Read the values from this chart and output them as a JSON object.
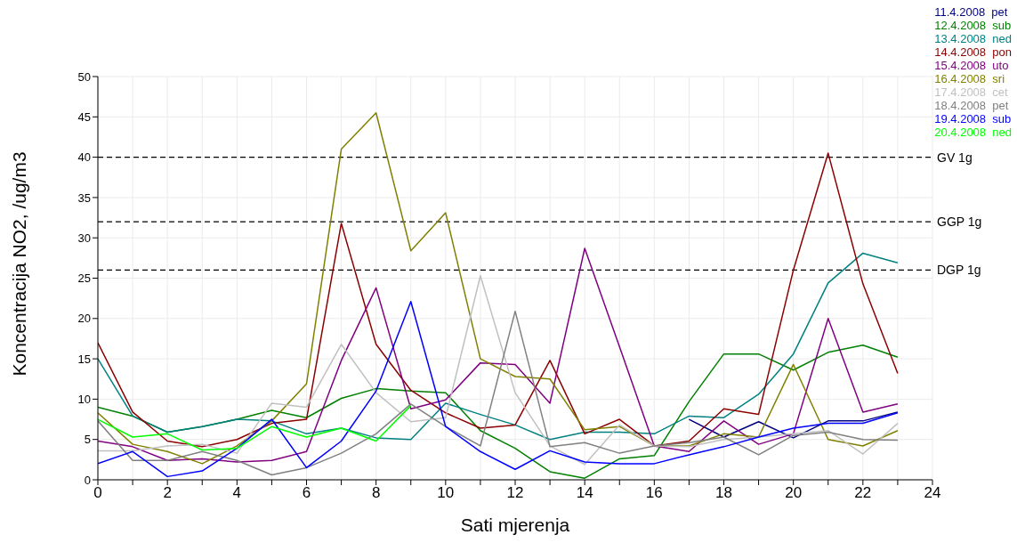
{
  "chart_data": {
    "type": "line",
    "xlabel": "Sati mjerenja",
    "ylabel": "Koncentracija NO2, /ug/m3",
    "x": [
      0,
      1,
      2,
      3,
      4,
      5,
      6,
      7,
      8,
      9,
      10,
      11,
      12,
      13,
      14,
      15,
      16,
      17,
      18,
      19,
      20,
      21,
      22,
      23
    ],
    "xlim": [
      0,
      24
    ],
    "xticks": [
      0,
      {
        "value": 1,
        "label": null
      },
      2,
      {
        "value": 3,
        "label": null
      },
      4,
      {
        "value": 5,
        "label": null
      },
      6,
      {
        "value": 7,
        "label": null
      },
      8,
      {
        "value": 9,
        "label": null
      },
      10,
      {
        "value": 11,
        "label": null
      },
      12,
      {
        "value": 13,
        "label": null
      },
      14,
      {
        "value": 15,
        "label": null
      },
      16,
      {
        "value": 17,
        "label": null
      },
      18,
      {
        "value": 19,
        "label": null
      },
      20,
      {
        "value": 21,
        "label": null
      },
      22,
      {
        "value": 23,
        "label": null
      },
      24
    ],
    "ylim": [
      0,
      50
    ],
    "yticks": [
      0,
      5,
      10,
      15,
      20,
      25,
      30,
      35,
      40,
      45,
      50
    ],
    "grid": true,
    "legend": "top right",
    "marker": "none",
    "line_style": "solid",
    "series": [
      {
        "name": "11.4.2008  pet",
        "color": "#000080",
        "values": [
          null,
          null,
          null,
          null,
          null,
          null,
          null,
          null,
          null,
          null,
          null,
          null,
          null,
          null,
          null,
          null,
          null,
          7.5,
          5.3,
          7.2,
          5.2,
          7.3,
          7.3,
          8.4
        ]
      },
      {
        "name": "12.4.2008  sub",
        "color": "#008000",
        "values": [
          9.0,
          7.9,
          5.9,
          6.6,
          7.5,
          8.6,
          7.7,
          10.1,
          11.3,
          11.0,
          10.8,
          6.1,
          3.9,
          1.0,
          0.2,
          2.6,
          3.0,
          9.7,
          15.6,
          15.6,
          13.6,
          15.8,
          16.7,
          15.2
        ]
      },
      {
        "name": "13.4.2008  ned",
        "color": "#008080",
        "values": [
          15.0,
          7.9,
          5.9,
          6.6,
          7.5,
          7.3,
          5.7,
          6.4,
          5.2,
          5.0,
          9.5,
          8.1,
          6.8,
          5.0,
          5.9,
          5.9,
          5.7,
          7.9,
          7.7,
          10.6,
          15.6,
          24.4,
          28.1,
          26.9
        ]
      },
      {
        "name": "14.4.2008  pon",
        "color": "#8b0000",
        "values": [
          17.0,
          8.4,
          4.8,
          4.1,
          5.0,
          7.0,
          7.5,
          31.8,
          16.8,
          11.1,
          8.3,
          6.4,
          6.8,
          14.8,
          5.7,
          7.5,
          4.2,
          4.8,
          8.8,
          8.1,
          26.0,
          40.5,
          24.3,
          13.2
        ]
      },
      {
        "name": "15.4.2008  uto",
        "color": "#800080",
        "values": [
          4.8,
          4.1,
          2.4,
          2.6,
          2.2,
          2.4,
          3.5,
          14.8,
          23.8,
          8.8,
          9.9,
          14.5,
          14.3,
          9.5,
          28.7,
          16.5,
          4.2,
          3.5,
          7.3,
          4.4,
          5.7,
          20.0,
          8.4,
          9.4
        ]
      },
      {
        "name": "16.4.2008  sri",
        "color": "#808000",
        "values": [
          8.3,
          4.4,
          3.5,
          2.0,
          4.2,
          7.3,
          11.9,
          41.0,
          45.5,
          28.4,
          33.1,
          15.0,
          12.8,
          12.5,
          6.2,
          6.6,
          4.2,
          4.2,
          5.7,
          5.3,
          14.3,
          5.0,
          4.2,
          6.1
        ]
      },
      {
        "name": "17.4.2008  cet",
        "color": "#c0c0c0",
        "values": [
          3.6,
          3.6,
          4.2,
          4.4,
          3.3,
          9.5,
          9.0,
          16.8,
          10.8,
          7.2,
          7.7,
          25.3,
          10.8,
          4.2,
          1.9,
          6.8,
          4.2,
          4.1,
          5.0,
          5.3,
          5.7,
          6.1,
          3.2,
          7.0
        ]
      },
      {
        "name": "18.4.2008  pet",
        "color": "#808080",
        "values": [
          7.3,
          2.4,
          2.4,
          3.5,
          2.4,
          0.6,
          1.5,
          3.3,
          5.7,
          9.4,
          6.6,
          4.2,
          20.9,
          4.1,
          4.6,
          3.3,
          4.2,
          4.6,
          5.3,
          3.1,
          5.5,
          5.9,
          5.0,
          4.9
        ]
      },
      {
        "name": "19.4.2008  sub",
        "color": "#0000ff",
        "values": [
          2.0,
          3.5,
          0.4,
          1.1,
          3.9,
          7.5,
          1.5,
          4.8,
          11.0,
          22.1,
          6.6,
          3.5,
          1.3,
          3.6,
          2.2,
          2.0,
          2.0,
          3.1,
          4.1,
          5.3,
          6.4,
          7.0,
          7.0,
          8.3
        ]
      },
      {
        "name": "20.4.2008  ned",
        "color": "#00ff00",
        "values": [
          7.5,
          5.3,
          5.7,
          3.7,
          3.9,
          6.6,
          5.3,
          6.4,
          4.8,
          9.2,
          null,
          null,
          null,
          null,
          null,
          null,
          null,
          null,
          null,
          null,
          null,
          null,
          null,
          null
        ]
      }
    ],
    "ref_lines": [
      {
        "axis": "y",
        "value": 40,
        "label": "GV 1g",
        "color": "#000000",
        "line_style": "dashed"
      },
      {
        "axis": "y",
        "value": 32,
        "label": "GGP 1g",
        "color": "#000000",
        "line_style": "dashed"
      },
      {
        "axis": "y",
        "value": 26,
        "label": "DGP 1g",
        "color": "#000000",
        "line_style": "dashed"
      }
    ]
  }
}
